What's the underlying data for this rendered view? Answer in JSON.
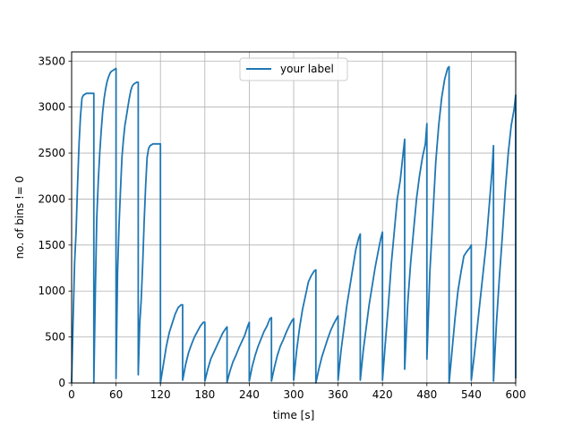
{
  "chart_data": {
    "type": "line",
    "xlabel": "time [s]",
    "ylabel": "no. of bins != 0",
    "xlim": [
      0,
      600
    ],
    "ylim": [
      0,
      3600
    ],
    "x_ticks": [
      0,
      60,
      120,
      180,
      240,
      300,
      360,
      420,
      480,
      540,
      600
    ],
    "y_ticks": [
      0,
      500,
      1000,
      1500,
      2000,
      2500,
      3000,
      3500
    ],
    "grid": true,
    "legend_position": "top-center",
    "series": [
      {
        "name": "your label",
        "color": "#1f77b4",
        "x": [
          0,
          2,
          4,
          6,
          8,
          10,
          12,
          14,
          16,
          18,
          20,
          22,
          24,
          26,
          28,
          30,
          30,
          32,
          34,
          36,
          38,
          40,
          42,
          44,
          46,
          48,
          50,
          52,
          54,
          56,
          58,
          60,
          60,
          62,
          64,
          66,
          68,
          70,
          72,
          74,
          76,
          78,
          80,
          82,
          84,
          86,
          88,
          90,
          90,
          92,
          94,
          96,
          98,
          100,
          102,
          104,
          106,
          108,
          110,
          112,
          114,
          116,
          118,
          120,
          120,
          124,
          128,
          132,
          136,
          140,
          144,
          148,
          150,
          150,
          154,
          158,
          162,
          166,
          170,
          174,
          178,
          180,
          180,
          184,
          188,
          192,
          196,
          200,
          204,
          208,
          210,
          210,
          214,
          218,
          222,
          226,
          230,
          234,
          238,
          240,
          240,
          244,
          248,
          252,
          256,
          260,
          264,
          268,
          270,
          270,
          274,
          278,
          282,
          286,
          290,
          294,
          298,
          300,
          300,
          304,
          308,
          312,
          316,
          320,
          324,
          328,
          330,
          330,
          334,
          338,
          342,
          346,
          350,
          354,
          358,
          360,
          360,
          364,
          368,
          372,
          376,
          380,
          384,
          388,
          390,
          390,
          394,
          398,
          402,
          406,
          410,
          414,
          418,
          420,
          420,
          424,
          428,
          432,
          436,
          440,
          444,
          448,
          450,
          450,
          454,
          458,
          462,
          466,
          470,
          474,
          478,
          480,
          480,
          484,
          488,
          492,
          496,
          500,
          504,
          508,
          510,
          510,
          514,
          518,
          522,
          526,
          530,
          534,
          538,
          540,
          540,
          544,
          548,
          552,
          556,
          560,
          564,
          568,
          570,
          570,
          574,
          578,
          582,
          586,
          590,
          594,
          598,
          600,
          600
        ],
        "y": [
          0,
          700,
          1300,
          1650,
          2150,
          2600,
          2900,
          3100,
          3130,
          3140,
          3150,
          3150,
          3150,
          3150,
          3150,
          3150,
          0,
          1000,
          1800,
          2200,
          2500,
          2750,
          2950,
          3100,
          3200,
          3280,
          3330,
          3370,
          3390,
          3400,
          3410,
          3420,
          50,
          1200,
          1700,
          2100,
          2450,
          2650,
          2800,
          2900,
          3000,
          3100,
          3180,
          3230,
          3250,
          3260,
          3270,
          3270,
          90,
          650,
          900,
          1300,
          1750,
          2150,
          2450,
          2550,
          2580,
          2590,
          2600,
          2600,
          2600,
          2600,
          2600,
          2600,
          0,
          200,
          400,
          550,
          650,
          750,
          820,
          850,
          850,
          30,
          200,
          330,
          420,
          500,
          560,
          620,
          660,
          660,
          20,
          150,
          260,
          330,
          400,
          470,
          540,
          590,
          610,
          10,
          130,
          230,
          300,
          380,
          450,
          520,
          620,
          660,
          20,
          180,
          300,
          400,
          480,
          560,
          620,
          700,
          710,
          20,
          170,
          300,
          400,
          470,
          550,
          620,
          680,
          700,
          30,
          350,
          600,
          800,
          950,
          1100,
          1170,
          1220,
          1230,
          0,
          150,
          280,
          380,
          480,
          570,
          640,
          700,
          730,
          30,
          350,
          600,
          850,
          1050,
          1250,
          1450,
          1580,
          1620,
          30,
          350,
          600,
          850,
          1050,
          1250,
          1420,
          1580,
          1640,
          30,
          450,
          850,
          1300,
          1650,
          2000,
          2200,
          2500,
          2650,
          150,
          850,
          1300,
          1650,
          2000,
          2250,
          2450,
          2600,
          2820,
          260,
          1200,
          1800,
          2400,
          2800,
          3100,
          3300,
          3420,
          3440,
          0,
          350,
          700,
          1000,
          1200,
          1380,
          1430,
          1470,
          1500,
          30,
          300,
          600,
          900,
          1200,
          1500,
          1900,
          2300,
          2580,
          20,
          650,
          1150,
          1600,
          2100,
          2500,
          2800,
          2980,
          3130,
          50
        ]
      }
    ]
  }
}
